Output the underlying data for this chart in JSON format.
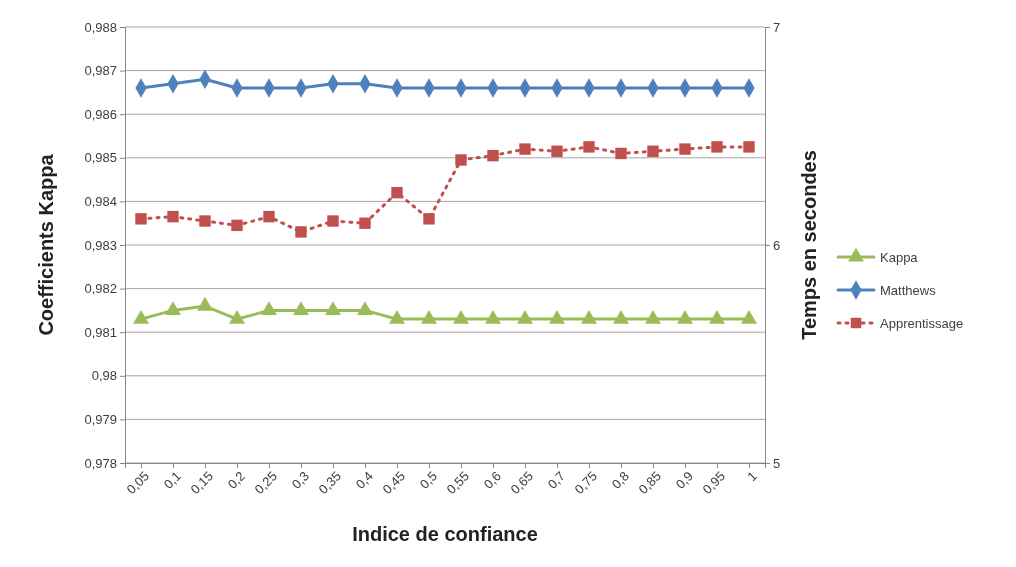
{
  "chart_data": {
    "type": "line",
    "xlabel": "Indice de confiance",
    "ylabel": "Coefficients Kappa",
    "y2label": "Temps en secondes",
    "categories": [
      "0,05",
      "0,1",
      "0,15",
      "0,2",
      "0,25",
      "0,3",
      "0,35",
      "0,4",
      "0,45",
      "0,5",
      "0,55",
      "0,6",
      "0,65",
      "0,7",
      "0,75",
      "0,8",
      "0,85",
      "0,9",
      "0,95",
      "1"
    ],
    "ylim": [
      0.978,
      0.988
    ],
    "yticks": [
      {
        "value": 0.978,
        "label": "0,978"
      },
      {
        "value": 0.979,
        "label": "0,979"
      },
      {
        "value": 0.98,
        "label": "0,98"
      },
      {
        "value": 0.981,
        "label": "0,981"
      },
      {
        "value": 0.982,
        "label": "0,982"
      },
      {
        "value": 0.983,
        "label": "0,983"
      },
      {
        "value": 0.984,
        "label": "0,984"
      },
      {
        "value": 0.985,
        "label": "0,985"
      },
      {
        "value": 0.986,
        "label": "0,986"
      },
      {
        "value": 0.987,
        "label": "0,987"
      },
      {
        "value": 0.988,
        "label": "0,988"
      }
    ],
    "y2lim": [
      5,
      7
    ],
    "y2ticks": [
      5,
      6,
      7
    ],
    "grid": "y",
    "legend": "right",
    "series": [
      {
        "name": "Kappa",
        "color": "#9bbb59",
        "marker": "triangle",
        "line_style": "solid",
        "values": [
          0.9813,
          0.9815,
          0.9816,
          0.9813,
          0.9815,
          0.9815,
          0.9815,
          0.9815,
          0.9813,
          0.9813,
          0.9813,
          0.9813,
          0.9813,
          0.9813,
          0.9813,
          0.9813,
          0.9813,
          0.9813,
          0.9813,
          0.9813
        ]
      },
      {
        "name": "Matthews",
        "color": "#4f81bd",
        "marker": "diamond",
        "line_style": "solid",
        "values": [
          0.9866,
          0.9867,
          0.9868,
          0.9866,
          0.9866,
          0.9866,
          0.9867,
          0.9867,
          0.9866,
          0.9866,
          0.9866,
          0.9866,
          0.9866,
          0.9866,
          0.9866,
          0.9866,
          0.9866,
          0.9866,
          0.9866,
          0.9866
        ]
      },
      {
        "name": "Apprentissage",
        "color": "#c0504d",
        "marker": "square",
        "line_style": "dotted",
        "axis": "y2",
        "values": [
          6.12,
          6.13,
          6.11,
          6.09,
          6.13,
          6.06,
          6.11,
          6.1,
          6.24,
          6.12,
          6.39,
          6.41,
          6.44,
          6.43,
          6.45,
          6.42,
          6.43,
          6.44,
          6.45,
          6.45
        ]
      }
    ]
  }
}
